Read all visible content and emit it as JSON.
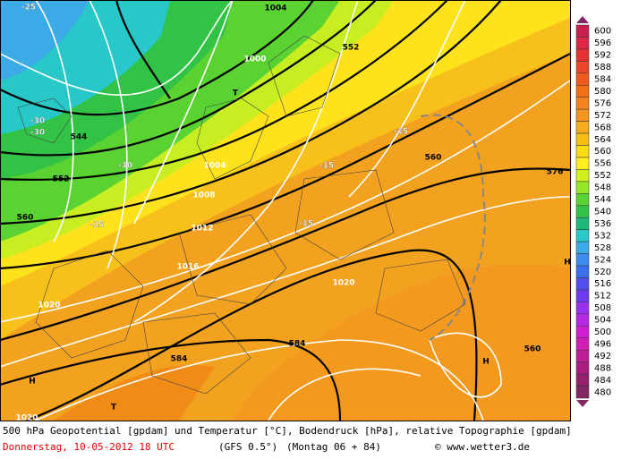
{
  "map": {
    "labels": [
      "-25",
      "1004",
      "1000",
      "552",
      "T",
      "-30",
      "-30",
      "544",
      "-30",
      "552",
      "1004",
      "1008",
      "560",
      "-15",
      "1012",
      "-15",
      "-15",
      "-15",
      "560",
      "576",
      "1016",
      "1020",
      "1020",
      "584",
      "584",
      "H",
      "T",
      "H",
      "560",
      "1020",
      "H"
    ]
  },
  "legend": {
    "values": [
      "600",
      "596",
      "592",
      "588",
      "584",
      "580",
      "576",
      "572",
      "568",
      "564",
      "560",
      "556",
      "552",
      "548",
      "544",
      "540",
      "536",
      "532",
      "528",
      "524",
      "520",
      "516",
      "512",
      "508",
      "504",
      "500",
      "496",
      "492",
      "488",
      "484",
      "480"
    ],
    "colors": [
      "#c81e50",
      "#dc2846",
      "#e63232",
      "#ee4628",
      "#f05a1e",
      "#f26e14",
      "#f4821e",
      "#f4961e",
      "#f6aa1e",
      "#f8be14",
      "#fadc14",
      "#fff01e",
      "#d2f01e",
      "#96e628",
      "#5ad232",
      "#32c346",
      "#1eb978",
      "#28c8c8",
      "#3caae6",
      "#3c8cf0",
      "#3c6ef0",
      "#5050f0",
      "#6e3cf0",
      "#9632f0",
      "#b428e6",
      "#d21ed2",
      "#d21eb4",
      "#be1e96",
      "#aa1e82",
      "#961e6e",
      "#822864"
    ]
  },
  "caption": {
    "line1": "500 hPa Geopotential [gpdam] und Temperatur [°C], Bodendruck [hPa], relative Topographie [gpdam]",
    "date": "Donnerstag, 10-05-2012  18 UTC",
    "model": "(GFS 0.5°)",
    "run": "(Montag 06 + 84)",
    "credit": "© www.wetter3.de"
  }
}
